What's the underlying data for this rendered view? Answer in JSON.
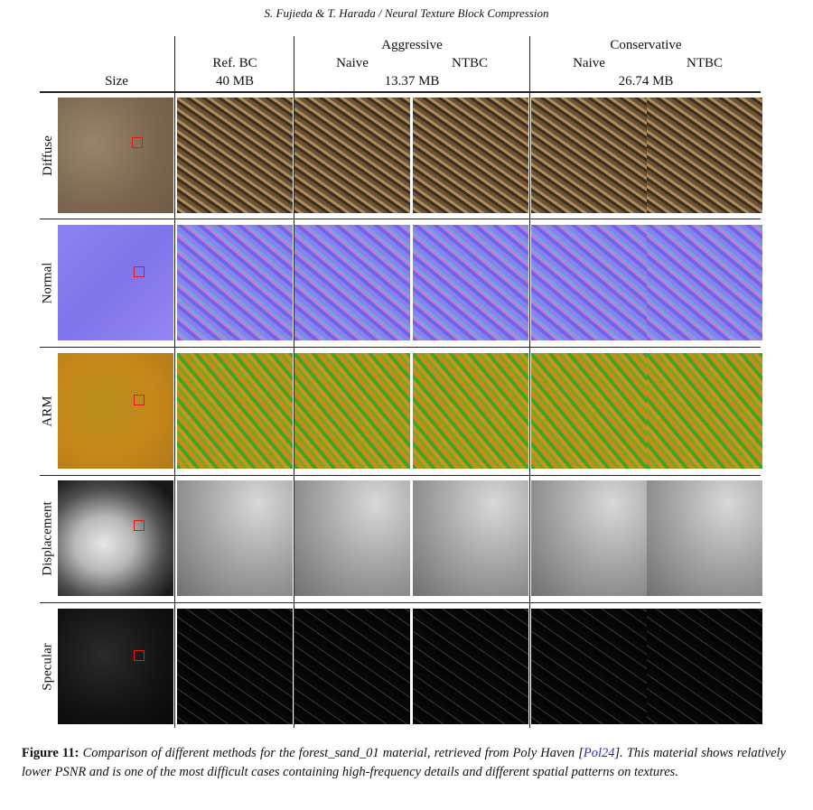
{
  "running_head": "S. Fujieda & T. Harada / Neural Texture Block Compression",
  "header": {
    "size_label": "Size",
    "ref_bc": "Ref. BC",
    "ref_size": "40 MB",
    "aggressive": "Aggressive",
    "aggressive_naive": "Naive",
    "aggressive_ntbc": "NTBC",
    "aggressive_size": "13.37 MB",
    "conservative": "Conservative",
    "conservative_naive": "Naive",
    "conservative_ntbc": "NTBC",
    "conservative_size": "26.74 MB"
  },
  "rows": [
    {
      "label": "Diffuse"
    },
    {
      "label": "Normal"
    },
    {
      "label": "ARM"
    },
    {
      "label": "Displacement"
    },
    {
      "label": "Specular"
    }
  ],
  "colors": {
    "diffuse_base": "#8a7258",
    "normal_base": "#8c7ef0",
    "arm_base": "#c98a1c",
    "arm_green": "#3aa822",
    "marker": "#e01818",
    "cite": "#2a2ad0"
  },
  "caption": {
    "label": "Figure 11:",
    "text_1": "Comparison of different methods for the forest_sand_01 material, retrieved from Poly Haven [",
    "cite": "Pol24",
    "text_2": "]. This material shows relatively lower PSNR and is one of the most difficult cases containing high-frequency details and different spatial patterns on textures."
  }
}
